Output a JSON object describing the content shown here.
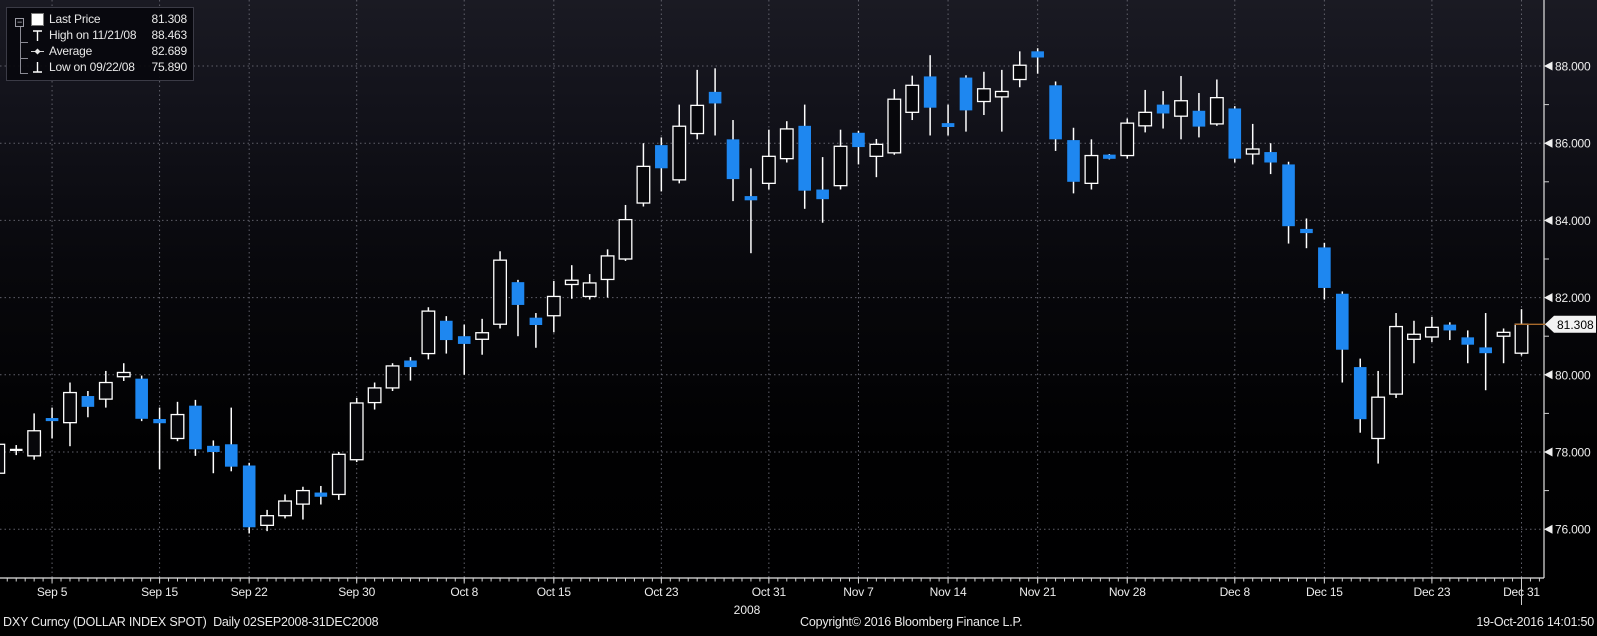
{
  "legend": {
    "collapse_glyph": "−",
    "rows": [
      {
        "icon": "last-price-square-marker",
        "label": "Last Price",
        "value": "81.308"
      },
      {
        "icon": "high-marker",
        "label": "High on 11/21/08",
        "value": "88.463"
      },
      {
        "icon": "average-marker",
        "label": "Average",
        "value": "82.689"
      },
      {
        "icon": "low-marker",
        "label": "Low on 09/22/08",
        "value": "75.890"
      }
    ]
  },
  "y_axis": {
    "majors": [
      {
        "price": 88,
        "label": "88.000"
      },
      {
        "price": 86,
        "label": "86.000"
      },
      {
        "price": 84,
        "label": "84.000"
      },
      {
        "price": 82,
        "label": "82.000"
      },
      {
        "price": 80,
        "label": "80.000"
      },
      {
        "price": 78,
        "label": "78.000"
      },
      {
        "price": 76,
        "label": "76.000"
      }
    ],
    "minor_prices": [
      87,
      85,
      83,
      81,
      79,
      77
    ]
  },
  "x_axis": {
    "ticks": [
      {
        "label": "Sep 5",
        "index": 3
      },
      {
        "label": "Sep 15",
        "index": 9
      },
      {
        "label": "Sep 22",
        "index": 14
      },
      {
        "label": "Sep 30",
        "index": 20
      },
      {
        "label": "Oct 8",
        "index": 26
      },
      {
        "label": "Oct 15",
        "index": 31
      },
      {
        "label": "Oct 23",
        "index": 37
      },
      {
        "label": "Oct 31",
        "index": 43
      },
      {
        "label": "Nov 7",
        "index": 48
      },
      {
        "label": "Nov 14",
        "index": 53
      },
      {
        "label": "Nov 21",
        "index": 58
      },
      {
        "label": "Nov 28",
        "index": 63
      },
      {
        "label": "Dec 8",
        "index": 69
      },
      {
        "label": "Dec 15",
        "index": 74
      },
      {
        "label": "Dec 23",
        "index": 80
      },
      {
        "label": "Dec 31",
        "index": 85
      }
    ],
    "year_label": "2008"
  },
  "last_price": {
    "label": "81.308",
    "value": 81.308
  },
  "footer": {
    "left": "DXY Curncy (DOLLAR INDEX SPOT)  Daily 02SEP2008-31DEC2008",
    "center": "Copyright© 2016 Bloomberg Finance L.P.",
    "right": "19-Oct-2016 14:01:50"
  },
  "colors": {
    "up": "#ffffff",
    "down": "#1e87f0",
    "grid": "#60606a",
    "axis": "#e2e2e2",
    "tick": "#cfcfcf",
    "last_price_line": "#a96a2b",
    "last_price_box": "#f2f2f2"
  },
  "chart_data": {
    "type": "candlestick",
    "title": "DXY Curncy (DOLLAR INDEX SPOT) Daily 02SEP2008-31DEC2008",
    "x_range": "02SEP2008-31DEC2008",
    "ylim": [
      74.7,
      89.7
    ],
    "grid": true,
    "legend_position": "top-left",
    "up_style": "hollow-white",
    "down_style": "solid-blue",
    "candles": [
      {
        "d": "Sep 2",
        "o": 77.45,
        "h": 78.3,
        "l": 77.3,
        "c": 78.2
      },
      {
        "d": "Sep 3",
        "o": 78.05,
        "h": 78.18,
        "l": 77.92,
        "c": 78.06
      },
      {
        "d": "Sep 4",
        "o": 77.9,
        "h": 79.0,
        "l": 77.8,
        "c": 78.55
      },
      {
        "d": "Sep 5",
        "o": 78.88,
        "h": 79.15,
        "l": 78.35,
        "c": 78.8
      },
      {
        "d": "Sep 8",
        "o": 78.76,
        "h": 79.8,
        "l": 78.15,
        "c": 79.54
      },
      {
        "d": "Sep 9",
        "o": 79.45,
        "h": 79.58,
        "l": 78.9,
        "c": 79.17
      },
      {
        "d": "Sep 10",
        "o": 79.37,
        "h": 80.1,
        "l": 79.15,
        "c": 79.8
      },
      {
        "d": "Sep 11",
        "o": 79.95,
        "h": 80.3,
        "l": 79.84,
        "c": 80.06
      },
      {
        "d": "Sep 12",
        "o": 79.9,
        "h": 79.98,
        "l": 78.8,
        "c": 78.86
      },
      {
        "d": "Sep 15",
        "o": 78.82,
        "h": 79.15,
        "l": 77.55,
        "c": 78.78
      },
      {
        "d": "Sep 16",
        "o": 78.35,
        "h": 79.3,
        "l": 78.28,
        "c": 78.97
      },
      {
        "d": "Sep 17",
        "o": 79.2,
        "h": 79.35,
        "l": 77.9,
        "c": 78.07
      },
      {
        "d": "Sep 18",
        "o": 78.16,
        "h": 78.3,
        "l": 77.45,
        "c": 78.0
      },
      {
        "d": "Sep 19",
        "o": 78.2,
        "h": 79.15,
        "l": 77.5,
        "c": 77.62
      },
      {
        "d": "Sep 22",
        "o": 77.65,
        "h": 77.72,
        "l": 75.89,
        "c": 76.05
      },
      {
        "d": "Sep 23",
        "o": 76.1,
        "h": 76.5,
        "l": 75.95,
        "c": 76.35
      },
      {
        "d": "Sep 24",
        "o": 76.35,
        "h": 76.9,
        "l": 76.28,
        "c": 76.73
      },
      {
        "d": "Sep 25",
        "o": 76.65,
        "h": 77.1,
        "l": 76.25,
        "c": 77.0
      },
      {
        "d": "Sep 26",
        "o": 76.92,
        "h": 77.12,
        "l": 76.64,
        "c": 76.87
      },
      {
        "d": "Sep 29",
        "o": 76.9,
        "h": 78.0,
        "l": 76.76,
        "c": 77.94
      },
      {
        "d": "Sep 30",
        "o": 77.8,
        "h": 79.4,
        "l": 77.74,
        "c": 79.27
      },
      {
        "d": "Oct 1",
        "o": 79.28,
        "h": 79.8,
        "l": 79.1,
        "c": 79.66
      },
      {
        "d": "Oct 2",
        "o": 79.66,
        "h": 80.3,
        "l": 79.58,
        "c": 80.23
      },
      {
        "d": "Oct 3",
        "o": 80.37,
        "h": 80.46,
        "l": 79.85,
        "c": 80.2
      },
      {
        "d": "Oct 6",
        "o": 80.55,
        "h": 81.75,
        "l": 80.4,
        "c": 81.65
      },
      {
        "d": "Oct 7",
        "o": 81.4,
        "h": 81.52,
        "l": 80.55,
        "c": 80.9
      },
      {
        "d": "Oct 8",
        "o": 81.0,
        "h": 81.3,
        "l": 80.0,
        "c": 80.8
      },
      {
        "d": "Oct 9",
        "o": 80.92,
        "h": 81.45,
        "l": 80.52,
        "c": 81.09
      },
      {
        "d": "Oct 10",
        "o": 81.31,
        "h": 83.2,
        "l": 81.2,
        "c": 82.97
      },
      {
        "d": "Oct 13",
        "o": 82.4,
        "h": 82.46,
        "l": 81.0,
        "c": 81.81
      },
      {
        "d": "Oct 14",
        "o": 81.48,
        "h": 81.6,
        "l": 80.7,
        "c": 81.29
      },
      {
        "d": "Oct 15",
        "o": 81.53,
        "h": 82.43,
        "l": 81.1,
        "c": 82.03
      },
      {
        "d": "Oct 16",
        "o": 82.34,
        "h": 82.84,
        "l": 81.97,
        "c": 82.45
      },
      {
        "d": "Oct 17",
        "o": 82.03,
        "h": 82.61,
        "l": 81.95,
        "c": 82.38
      },
      {
        "d": "Oct 20",
        "o": 82.47,
        "h": 83.25,
        "l": 82.0,
        "c": 83.08
      },
      {
        "d": "Oct 21",
        "o": 83.0,
        "h": 84.4,
        "l": 82.95,
        "c": 84.02
      },
      {
        "d": "Oct 22",
        "o": 84.45,
        "h": 86.0,
        "l": 84.36,
        "c": 85.4
      },
      {
        "d": "Oct 23",
        "o": 85.95,
        "h": 86.15,
        "l": 84.75,
        "c": 85.35
      },
      {
        "d": "Oct 24",
        "o": 85.05,
        "h": 87.0,
        "l": 84.96,
        "c": 86.44
      },
      {
        "d": "Oct 27",
        "o": 86.25,
        "h": 87.9,
        "l": 86.1,
        "c": 86.98
      },
      {
        "d": "Oct 28",
        "o": 87.33,
        "h": 87.94,
        "l": 86.2,
        "c": 87.03
      },
      {
        "d": "Oct 29",
        "o": 86.1,
        "h": 86.6,
        "l": 84.5,
        "c": 85.07
      },
      {
        "d": "Oct 30",
        "o": 84.6,
        "h": 85.35,
        "l": 83.15,
        "c": 84.55
      },
      {
        "d": "Oct 31",
        "o": 84.96,
        "h": 86.35,
        "l": 84.8,
        "c": 85.66
      },
      {
        "d": "Nov 3",
        "o": 85.6,
        "h": 86.57,
        "l": 85.5,
        "c": 86.37
      },
      {
        "d": "Nov 4",
        "o": 86.45,
        "h": 87.0,
        "l": 84.3,
        "c": 84.77
      },
      {
        "d": "Nov 5",
        "o": 84.8,
        "h": 85.64,
        "l": 83.94,
        "c": 84.55
      },
      {
        "d": "Nov 6",
        "o": 84.9,
        "h": 86.35,
        "l": 84.8,
        "c": 85.92
      },
      {
        "d": "Nov 7",
        "o": 86.27,
        "h": 86.32,
        "l": 85.45,
        "c": 85.9
      },
      {
        "d": "Nov 10",
        "o": 85.66,
        "h": 86.11,
        "l": 85.12,
        "c": 85.97
      },
      {
        "d": "Nov 11",
        "o": 85.75,
        "h": 87.4,
        "l": 85.7,
        "c": 87.14
      },
      {
        "d": "Nov 12",
        "o": 86.8,
        "h": 87.75,
        "l": 86.6,
        "c": 87.5
      },
      {
        "d": "Nov 13",
        "o": 87.73,
        "h": 88.28,
        "l": 86.2,
        "c": 86.92
      },
      {
        "d": "Nov 14",
        "o": 86.52,
        "h": 87.0,
        "l": 86.2,
        "c": 86.42
      },
      {
        "d": "Nov 17",
        "o": 87.7,
        "h": 87.76,
        "l": 86.3,
        "c": 86.85
      },
      {
        "d": "Nov 18",
        "o": 87.08,
        "h": 87.85,
        "l": 86.73,
        "c": 87.41
      },
      {
        "d": "Nov 19",
        "o": 87.2,
        "h": 87.9,
        "l": 86.3,
        "c": 87.34
      },
      {
        "d": "Nov 20",
        "o": 87.65,
        "h": 88.38,
        "l": 87.45,
        "c": 88.02
      },
      {
        "d": "Nov 21",
        "o": 88.38,
        "h": 88.46,
        "l": 87.8,
        "c": 88.22
      },
      {
        "d": "Nov 24",
        "o": 87.5,
        "h": 87.6,
        "l": 85.8,
        "c": 86.1
      },
      {
        "d": "Nov 25",
        "o": 86.08,
        "h": 86.4,
        "l": 84.7,
        "c": 85.0
      },
      {
        "d": "Nov 26",
        "o": 84.96,
        "h": 86.1,
        "l": 84.8,
        "c": 85.68
      },
      {
        "d": "Nov 27",
        "o": 85.66,
        "h": 85.72,
        "l": 85.58,
        "c": 85.64
      },
      {
        "d": "Nov 28",
        "o": 85.68,
        "h": 86.64,
        "l": 85.6,
        "c": 86.52
      },
      {
        "d": "Dec 1",
        "o": 86.45,
        "h": 87.38,
        "l": 86.28,
        "c": 86.8
      },
      {
        "d": "Dec 2",
        "o": 87.0,
        "h": 87.35,
        "l": 86.38,
        "c": 86.77
      },
      {
        "d": "Dec 3",
        "o": 86.7,
        "h": 87.74,
        "l": 86.1,
        "c": 87.1
      },
      {
        "d": "Dec 4",
        "o": 86.84,
        "h": 87.3,
        "l": 86.15,
        "c": 86.43
      },
      {
        "d": "Dec 5",
        "o": 86.5,
        "h": 87.65,
        "l": 86.45,
        "c": 87.18
      },
      {
        "d": "Dec 8",
        "o": 86.9,
        "h": 86.96,
        "l": 85.5,
        "c": 85.6
      },
      {
        "d": "Dec 9",
        "o": 85.72,
        "h": 86.5,
        "l": 85.45,
        "c": 85.85
      },
      {
        "d": "Dec 10",
        "o": 85.77,
        "h": 86.0,
        "l": 85.2,
        "c": 85.5
      },
      {
        "d": "Dec 11",
        "o": 85.45,
        "h": 85.52,
        "l": 83.4,
        "c": 83.85
      },
      {
        "d": "Dec 12",
        "o": 83.75,
        "h": 84.05,
        "l": 83.28,
        "c": 83.7
      },
      {
        "d": "Dec 15",
        "o": 83.3,
        "h": 83.42,
        "l": 81.95,
        "c": 82.25
      },
      {
        "d": "Dec 16",
        "o": 82.1,
        "h": 82.16,
        "l": 79.8,
        "c": 80.65
      },
      {
        "d": "Dec 17",
        "o": 80.2,
        "h": 80.42,
        "l": 78.5,
        "c": 78.85
      },
      {
        "d": "Dec 18",
        "o": 78.35,
        "h": 80.1,
        "l": 77.7,
        "c": 79.42
      },
      {
        "d": "Dec 19",
        "o": 79.5,
        "h": 81.6,
        "l": 79.4,
        "c": 81.25
      },
      {
        "d": "Dec 22",
        "o": 80.92,
        "h": 81.4,
        "l": 80.3,
        "c": 81.05
      },
      {
        "d": "Dec 23",
        "o": 80.98,
        "h": 81.5,
        "l": 80.85,
        "c": 81.23
      },
      {
        "d": "Dec 24",
        "o": 81.3,
        "h": 81.36,
        "l": 80.9,
        "c": 81.15
      },
      {
        "d": "Dec 26",
        "o": 80.97,
        "h": 81.15,
        "l": 80.3,
        "c": 80.78
      },
      {
        "d": "Dec 29",
        "o": 80.71,
        "h": 81.6,
        "l": 79.6,
        "c": 80.56
      },
      {
        "d": "Dec 30",
        "o": 81.0,
        "h": 81.2,
        "l": 80.3,
        "c": 81.1
      },
      {
        "d": "Dec 31",
        "o": 80.56,
        "h": 81.7,
        "l": 80.5,
        "c": 81.31
      }
    ]
  }
}
